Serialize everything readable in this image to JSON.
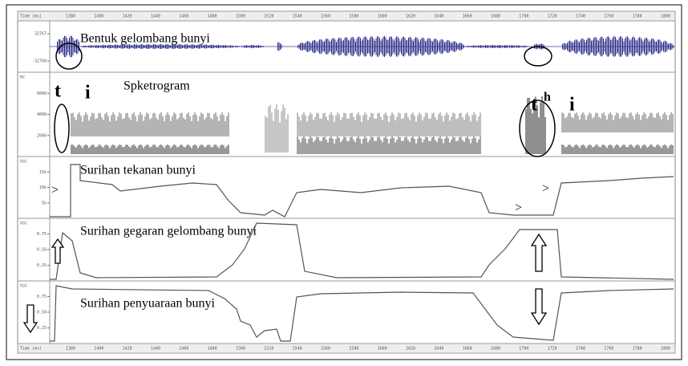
{
  "time_axis": {
    "label": "Time (ms)",
    "ticks": [
      "1380",
      "1400",
      "1420",
      "1440",
      "1460",
      "1480",
      "1500",
      "1520",
      "1540",
      "1560",
      "1580",
      "1600",
      "1620",
      "1640",
      "1660",
      "1680",
      "1700",
      "1720",
      "1740",
      "1760",
      "1780",
      "1800"
    ]
  },
  "panels": [
    {
      "title": "Bentuk gelombang bunyi",
      "yticks": [
        "32767",
        "-32768"
      ]
    },
    {
      "title": "Spketrogram",
      "unit": "Hz",
      "yticks": [
        "6000",
        "4000",
        "2000"
      ]
    },
    {
      "title": "Surihan tekanan bunyi",
      "unit": "Val",
      "yticks": [
        "15k",
        "10k",
        "5k"
      ]
    },
    {
      "title": "Surihan gegaran gelombang bunyi",
      "unit": "Val",
      "yticks": [
        "0.75",
        "0.50",
        "0.25"
      ]
    },
    {
      "title": "Surihan penyuaraan bunyi",
      "unit": "Val",
      "yticks": [
        "0.75",
        "0.50",
        "0.25"
      ]
    }
  ],
  "annotations": {
    "t1": "t",
    "i1": "i",
    "t2": "t",
    "h": "h",
    "i2": "i",
    "marker1": ">",
    "marker2": ">",
    "marker3": ">"
  }
}
